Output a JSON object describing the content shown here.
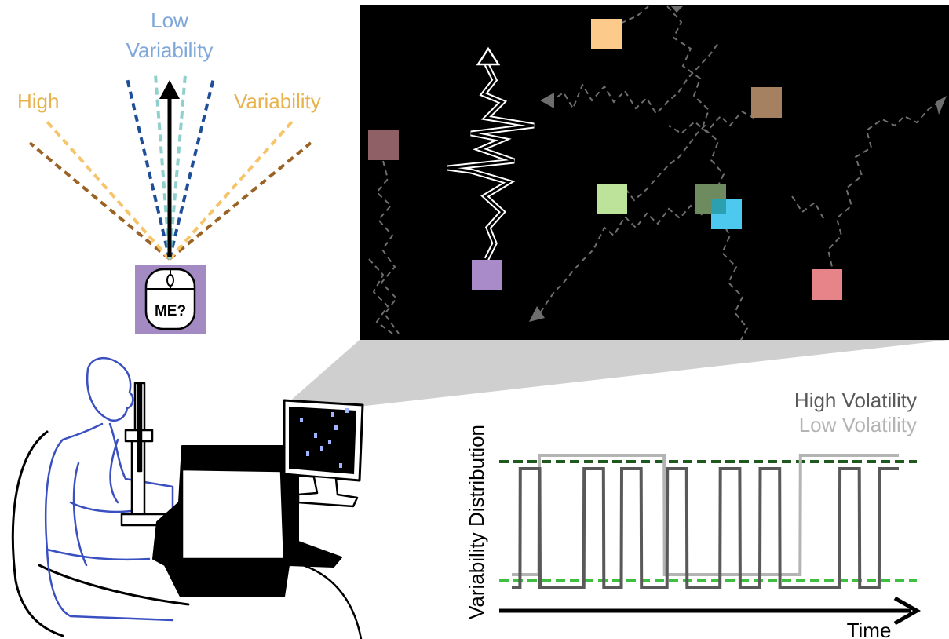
{
  "fan_panel": {
    "low_variability_label_line1": "Low",
    "low_variability_label_line2": "Variability",
    "high_label": "High",
    "variability_label_right": "Variability",
    "mouse_label": "ME?",
    "colors": {
      "low_label": "#7fa7d9",
      "high_label": "#e8b24d",
      "dark_blue": "#1f4e99",
      "teal": "#8fd0cc",
      "light_orange": "#f6c46b",
      "brown": "#9a6224",
      "mouse_box": "#a48ac2"
    }
  },
  "screen_panel": {
    "background": "#000000",
    "squares": [
      {
        "name": "peach",
        "color": "#fcca8a"
      },
      {
        "name": "brown",
        "color": "#a58162"
      },
      {
        "name": "mauve",
        "color": "#8f6066"
      },
      {
        "name": "light-green",
        "color": "#bde39b"
      },
      {
        "name": "olive",
        "color": "#6e8a5f"
      },
      {
        "name": "cyan",
        "color": "#4dc8ee"
      },
      {
        "name": "lavender",
        "color": "#a88bc8"
      },
      {
        "name": "pink",
        "color": "#e6848a"
      }
    ],
    "trail_color": "#6e6e6e",
    "cursor_path_color": "#ffffff"
  },
  "chart_panel": {
    "legend": {
      "high_volatility": "High Volatility",
      "low_volatility": "Low Volatility",
      "high_color": "#595959",
      "low_color": "#b4b4b4"
    },
    "ylabel": "Variability Distribution",
    "xlabel": "Time",
    "dashed_high_color": "#1e5a1e",
    "dashed_low_color": "#3fbf3f"
  },
  "chart_data": {
    "type": "line",
    "title": "",
    "xlabel": "Time",
    "ylabel": "Variability Distribution",
    "x": [
      0,
      2.1,
      2.2,
      7.2,
      7.3,
      18.6,
      18.7,
      23.7,
      23.8,
      28.3,
      28.4,
      33.4,
      33.5,
      40.1,
      40.2,
      45.2,
      45.3,
      53.8,
      53.9,
      58.9,
      59.0,
      64.1,
      64.2,
      69.2,
      69.3,
      84.7,
      84.8,
      89.8,
      89.9,
      94.9,
      95.0,
      100
    ],
    "series": [
      {
        "name": "High Volatility",
        "values": [
          0,
          0,
          1,
          1,
          0,
          0,
          1,
          1,
          0,
          0,
          1,
          1,
          0,
          0,
          1,
          1,
          0,
          0,
          1,
          1,
          0,
          0,
          1,
          1,
          0,
          0,
          1,
          1,
          0,
          0,
          1,
          1
        ]
      },
      {
        "name": "Low Volatility",
        "x": [
          0,
          7.0,
          7.1,
          39.4,
          39.5,
          74.5,
          74.6,
          100
        ],
        "values": [
          0,
          0,
          1,
          1,
          0,
          0,
          1,
          1
        ]
      }
    ],
    "reference_lines": [
      {
        "level": "high",
        "style": "dashed"
      },
      {
        "level": "low",
        "style": "dashed"
      }
    ],
    "grid": false,
    "legend_position": "top-right"
  }
}
